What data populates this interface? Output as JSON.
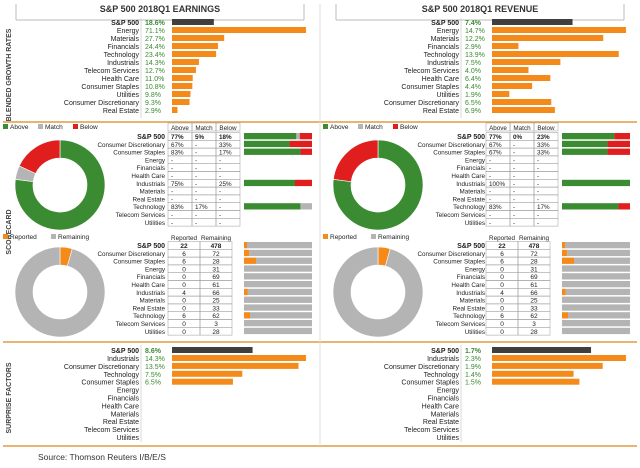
{
  "colors": {
    "orange": "#f48a1a",
    "dark": "#3f3f3f",
    "green": "#3a8b31",
    "red": "#e01e1e",
    "gray": "#b4b4b4",
    "pos_green": "#3a8b31",
    "border": "#d9871c"
  },
  "source": "Source: Thomson Reuters I/B/E/S",
  "section_labels": {
    "growth": "BLENDED GROWTH RATES",
    "scorecard": "SCORECARD",
    "surprise": "SURPRISE FACTORS"
  },
  "legends": {
    "above": "Above",
    "match": "Match",
    "below": "Below",
    "reported": "Reported",
    "remaining": "Remaining"
  },
  "table_headers": {
    "above": "Above",
    "match": "Match",
    "below": "Below",
    "reported": "Reported",
    "remaining": "Remaining"
  },
  "panels": [
    {
      "title": "S&P 500 2018Q1 EARNINGS",
      "growth": {
        "sp500_label": "S&P 500",
        "sp500_value": 18.6,
        "sp500_text": "18.6%",
        "max": 71.1,
        "rows": [
          {
            "name": "Energy",
            "value": 71.1,
            "text": "71.1%"
          },
          {
            "name": "Materials",
            "value": 27.7,
            "text": "27.7%"
          },
          {
            "name": "Financials",
            "value": 24.4,
            "text": "24.4%"
          },
          {
            "name": "Technology",
            "value": 23.4,
            "text": "23.4%"
          },
          {
            "name": "Industrials",
            "value": 14.3,
            "text": "14.3%"
          },
          {
            "name": "Telecom Services",
            "value": 12.7,
            "text": "12.7%"
          },
          {
            "name": "Health Care",
            "value": 11.0,
            "text": "11.0%"
          },
          {
            "name": "Consumer Staples",
            "value": 10.8,
            "text": "10.8%"
          },
          {
            "name": "Utilities",
            "value": 9.8,
            "text": "9.8%"
          },
          {
            "name": "Consumer Discretionary",
            "value": 9.3,
            "text": "9.3%"
          },
          {
            "name": "Real Estate",
            "value": 2.9,
            "text": "2.9%"
          }
        ]
      },
      "scorecard": {
        "pie": {
          "above": 77,
          "match": 5,
          "below": 18
        },
        "sp500": {
          "name": "S&P 500",
          "above": "77%",
          "match": "5%",
          "below": "18%",
          "a": 77,
          "m": 5,
          "b": 18
        },
        "rows": [
          {
            "name": "Consumer Discretionary",
            "above": "67%",
            "match": "-",
            "below": "33%",
            "a": 67,
            "m": 0,
            "b": 33
          },
          {
            "name": "Consumer Staples",
            "above": "83%",
            "match": "-",
            "below": "17%",
            "a": 83,
            "m": 0,
            "b": 17
          },
          {
            "name": "Energy",
            "above": "-",
            "match": "-",
            "below": "-",
            "a": 0,
            "m": 0,
            "b": 0
          },
          {
            "name": "Financials",
            "above": "-",
            "match": "-",
            "below": "-",
            "a": 0,
            "m": 0,
            "b": 0
          },
          {
            "name": "Health Care",
            "above": "-",
            "match": "-",
            "below": "-",
            "a": 0,
            "m": 0,
            "b": 0
          },
          {
            "name": "Industrials",
            "above": "75%",
            "match": "-",
            "below": "25%",
            "a": 75,
            "m": 0,
            "b": 25
          },
          {
            "name": "Materials",
            "above": "-",
            "match": "-",
            "below": "-",
            "a": 0,
            "m": 0,
            "b": 0
          },
          {
            "name": "Real Estate",
            "above": "-",
            "match": "-",
            "below": "-",
            "a": 0,
            "m": 0,
            "b": 0
          },
          {
            "name": "Technology",
            "above": "83%",
            "match": "17%",
            "below": "-",
            "a": 83,
            "m": 17,
            "b": 0
          },
          {
            "name": "Telecom Services",
            "above": "-",
            "match": "-",
            "below": "-",
            "a": 0,
            "m": 0,
            "b": 0
          },
          {
            "name": "Utilities",
            "above": "-",
            "match": "-",
            "below": "-",
            "a": 0,
            "m": 0,
            "b": 0
          }
        ]
      },
      "reported": {
        "pie": {
          "reported": 22,
          "remaining": 478
        },
        "sp500": {
          "name": "S&P 500",
          "reported": 22,
          "remaining": 478
        },
        "rows": [
          {
            "name": "Consumer Discretionary",
            "reported": 6,
            "remaining": 72
          },
          {
            "name": "Consumer Staples",
            "reported": 6,
            "remaining": 28
          },
          {
            "name": "Energy",
            "reported": 0,
            "remaining": 31
          },
          {
            "name": "Financials",
            "reported": 0,
            "remaining": 69
          },
          {
            "name": "Health Care",
            "reported": 0,
            "remaining": 61
          },
          {
            "name": "Industrials",
            "reported": 4,
            "remaining": 66
          },
          {
            "name": "Materials",
            "reported": 0,
            "remaining": 25
          },
          {
            "name": "Real Estate",
            "reported": 0,
            "remaining": 33
          },
          {
            "name": "Technology",
            "reported": 6,
            "remaining": 62
          },
          {
            "name": "Telecom Services",
            "reported": 0,
            "remaining": 3
          },
          {
            "name": "Utilities",
            "reported": 0,
            "remaining": 28
          }
        ]
      },
      "surprise": {
        "sp500_label": "S&P 500",
        "sp500_value": 8.6,
        "sp500_text": "8.6%",
        "max": 14.3,
        "rows": [
          {
            "name": "Industrials",
            "value": 14.3,
            "text": "14.3%"
          },
          {
            "name": "Consumer Discretionary",
            "value": 13.5,
            "text": "13.5%"
          },
          {
            "name": "Technology",
            "value": 7.5,
            "text": "7.5%"
          },
          {
            "name": "Consumer Staples",
            "value": 6.5,
            "text": "6.5%"
          },
          {
            "name": "Energy",
            "value": null,
            "text": ""
          },
          {
            "name": "Financials",
            "value": null,
            "text": ""
          },
          {
            "name": "Health Care",
            "value": null,
            "text": ""
          },
          {
            "name": "Materials",
            "value": null,
            "text": ""
          },
          {
            "name": "Real Estate",
            "value": null,
            "text": ""
          },
          {
            "name": "Telecom Services",
            "value": null,
            "text": ""
          },
          {
            "name": "Utilities",
            "value": null,
            "text": ""
          }
        ]
      }
    },
    {
      "title": "S&P 500 2018Q1 REVENUE",
      "growth": {
        "sp500_label": "S&P 500",
        "sp500_value": 7.4,
        "sp500_text": "7.4%",
        "max": 14.7,
        "rows": [
          {
            "name": "Energy",
            "value": 14.7,
            "text": "14.7%"
          },
          {
            "name": "Materials",
            "value": 12.2,
            "text": "12.2%"
          },
          {
            "name": "Financials",
            "value": 2.9,
            "text": "2.9%"
          },
          {
            "name": "Technology",
            "value": 13.9,
            "text": "13.9%"
          },
          {
            "name": "Industrials",
            "value": 7.5,
            "text": "7.5%"
          },
          {
            "name": "Telecom Services",
            "value": 4.0,
            "text": "4.0%"
          },
          {
            "name": "Health Care",
            "value": 6.4,
            "text": "6.4%"
          },
          {
            "name": "Consumer Staples",
            "value": 4.4,
            "text": "4.4%"
          },
          {
            "name": "Utilities",
            "value": 1.9,
            "text": "1.9%"
          },
          {
            "name": "Consumer Discretionary",
            "value": 6.5,
            "text": "6.5%"
          },
          {
            "name": "Real Estate",
            "value": 6.9,
            "text": "6.9%"
          }
        ]
      },
      "scorecard": {
        "pie": {
          "above": 77,
          "match": 0,
          "below": 23
        },
        "sp500": {
          "name": "S&P 500",
          "above": "77%",
          "match": "0%",
          "below": "23%",
          "a": 77,
          "m": 0,
          "b": 23
        },
        "rows": [
          {
            "name": "Consumer Discretionary",
            "above": "67%",
            "match": "-",
            "below": "33%",
            "a": 67,
            "m": 0,
            "b": 33
          },
          {
            "name": "Consumer Staples",
            "above": "67%",
            "match": "-",
            "below": "33%",
            "a": 67,
            "m": 0,
            "b": 33
          },
          {
            "name": "Energy",
            "above": "-",
            "match": "-",
            "below": "-",
            "a": 0,
            "m": 0,
            "b": 0
          },
          {
            "name": "Financials",
            "above": "-",
            "match": "-",
            "below": "-",
            "a": 0,
            "m": 0,
            "b": 0
          },
          {
            "name": "Health Care",
            "above": "-",
            "match": "-",
            "below": "-",
            "a": 0,
            "m": 0,
            "b": 0
          },
          {
            "name": "Industrials",
            "above": "100%",
            "match": "-",
            "below": "-",
            "a": 100,
            "m": 0,
            "b": 0
          },
          {
            "name": "Materials",
            "above": "-",
            "match": "-",
            "below": "-",
            "a": 0,
            "m": 0,
            "b": 0
          },
          {
            "name": "Real Estate",
            "above": "-",
            "match": "-",
            "below": "-",
            "a": 0,
            "m": 0,
            "b": 0
          },
          {
            "name": "Technology",
            "above": "83%",
            "match": "-",
            "below": "17%",
            "a": 83,
            "m": 0,
            "b": 17
          },
          {
            "name": "Telecom Services",
            "above": "-",
            "match": "-",
            "below": "-",
            "a": 0,
            "m": 0,
            "b": 0
          },
          {
            "name": "Utilities",
            "above": "-",
            "match": "-",
            "below": "-",
            "a": 0,
            "m": 0,
            "b": 0
          }
        ]
      },
      "reported": {
        "pie": {
          "reported": 22,
          "remaining": 478
        },
        "sp500": {
          "name": "S&P 500",
          "reported": 22,
          "remaining": 478
        },
        "rows": [
          {
            "name": "Consumer Discretionary",
            "reported": 6,
            "remaining": 72
          },
          {
            "name": "Consumer Staples",
            "reported": 6,
            "remaining": 28
          },
          {
            "name": "Energy",
            "reported": 0,
            "remaining": 31
          },
          {
            "name": "Financials",
            "reported": 0,
            "remaining": 69
          },
          {
            "name": "Health Care",
            "reported": 0,
            "remaining": 61
          },
          {
            "name": "Industrials",
            "reported": 4,
            "remaining": 66
          },
          {
            "name": "Materials",
            "reported": 0,
            "remaining": 25
          },
          {
            "name": "Real Estate",
            "reported": 0,
            "remaining": 33
          },
          {
            "name": "Technology",
            "reported": 6,
            "remaining": 62
          },
          {
            "name": "Telecom Services",
            "reported": 0,
            "remaining": 3
          },
          {
            "name": "Utilities",
            "reported": 0,
            "remaining": 28
          }
        ]
      },
      "surprise": {
        "sp500_label": "S&P 500",
        "sp500_value": 1.7,
        "sp500_text": "1.7%",
        "max": 2.3,
        "rows": [
          {
            "name": "Industrials",
            "value": 2.3,
            "text": "2.3%"
          },
          {
            "name": "Consumer Discretionary",
            "value": 1.9,
            "text": "1.9%"
          },
          {
            "name": "Technology",
            "value": 1.4,
            "text": "1.4%"
          },
          {
            "name": "Consumer Staples",
            "value": 1.5,
            "text": "1.5%"
          },
          {
            "name": "Energy",
            "value": null,
            "text": ""
          },
          {
            "name": "Financials",
            "value": null,
            "text": ""
          },
          {
            "name": "Health Care",
            "value": null,
            "text": ""
          },
          {
            "name": "Materials",
            "value": null,
            "text": ""
          },
          {
            "name": "Real Estate",
            "value": null,
            "text": ""
          },
          {
            "name": "Telecom Services",
            "value": null,
            "text": ""
          },
          {
            "name": "Utilities",
            "value": null,
            "text": ""
          }
        ]
      }
    }
  ],
  "chart_data": [
    {
      "type": "bar",
      "title": "S&P 500 2018Q1 EARNINGS - Blended Growth Rates (%)",
      "categories": [
        "S&P 500",
        "Energy",
        "Materials",
        "Financials",
        "Technology",
        "Industrials",
        "Telecom Services",
        "Health Care",
        "Consumer Staples",
        "Utilities",
        "Consumer Discretionary",
        "Real Estate"
      ],
      "values": [
        18.6,
        71.1,
        27.7,
        24.4,
        23.4,
        14.3,
        12.7,
        11.0,
        10.8,
        9.8,
        9.3,
        2.9
      ]
    },
    {
      "type": "bar",
      "title": "S&P 500 2018Q1 REVENUE - Blended Growth Rates (%)",
      "categories": [
        "S&P 500",
        "Energy",
        "Materials",
        "Financials",
        "Technology",
        "Industrials",
        "Telecom Services",
        "Health Care",
        "Consumer Staples",
        "Utilities",
        "Consumer Discretionary",
        "Real Estate"
      ],
      "values": [
        7.4,
        14.7,
        12.2,
        2.9,
        13.9,
        7.5,
        4.0,
        6.4,
        4.4,
        1.9,
        6.5,
        6.9
      ]
    },
    {
      "type": "pie",
      "title": "Earnings Scorecard",
      "categories": [
        "Above",
        "Match",
        "Below"
      ],
      "values": [
        77,
        5,
        18
      ]
    },
    {
      "type": "pie",
      "title": "Revenue Scorecard",
      "categories": [
        "Above",
        "Match",
        "Below"
      ],
      "values": [
        77,
        0,
        23
      ]
    },
    {
      "type": "pie",
      "title": "Reported vs Remaining",
      "categories": [
        "Reported",
        "Remaining"
      ],
      "values": [
        22,
        478
      ]
    },
    {
      "type": "bar",
      "title": "Earnings Surprise Factors (%)",
      "categories": [
        "S&P 500",
        "Industrials",
        "Consumer Discretionary",
        "Technology",
        "Consumer Staples"
      ],
      "values": [
        8.6,
        14.3,
        13.5,
        7.5,
        6.5
      ]
    },
    {
      "type": "bar",
      "title": "Revenue Surprise Factors (%)",
      "categories": [
        "S&P 500",
        "Industrials",
        "Consumer Discretionary",
        "Technology",
        "Consumer Staples"
      ],
      "values": [
        1.7,
        2.3,
        1.9,
        1.4,
        1.5
      ]
    }
  ]
}
